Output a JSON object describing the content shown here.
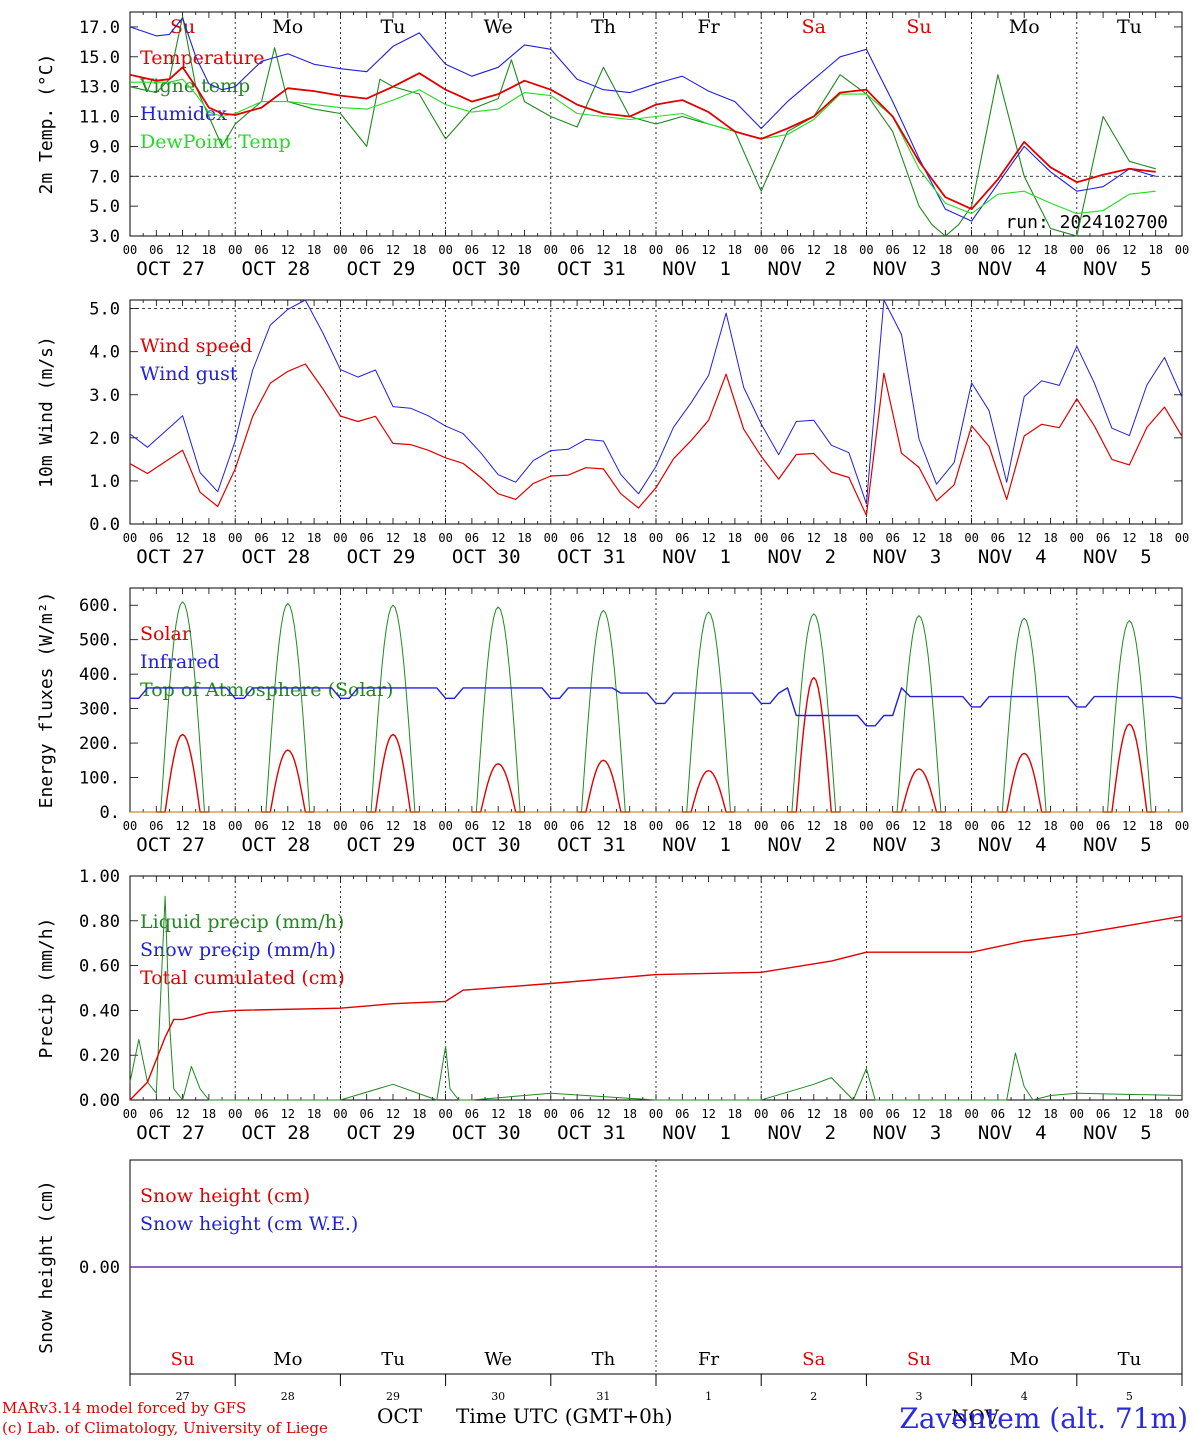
{
  "panels": [
    {
      "id": "temp",
      "ylabel": "2m Temp. (°C)",
      "ylim": [
        3.0,
        18.0
      ],
      "yticks": [
        "3.0",
        "5.0",
        "7.0",
        "9.0",
        "11.0",
        "13.0",
        "15.0",
        "17.0"
      ],
      "ytick_values": [
        3,
        5,
        7,
        9,
        11,
        13,
        15,
        17
      ],
      "dashed_y": 7.0,
      "legend": [
        {
          "label": "Temperature",
          "color": "#e00000"
        },
        {
          "label": "Vigne temp",
          "color": "#1f8a1f"
        },
        {
          "label": "Humidex",
          "color": "#2020e0"
        },
        {
          "label": "DewPoint Temp",
          "color": "#22dd22"
        }
      ],
      "run_label": "run: 2024102700"
    },
    {
      "id": "wind",
      "ylabel": "10m Wind (m/s)",
      "ylim": [
        0.0,
        5.2
      ],
      "yticks": [
        "0.0",
        "1.0",
        "2.0",
        "3.0",
        "4.0",
        "5.0"
      ],
      "ytick_values": [
        0,
        1,
        2,
        3,
        4,
        5
      ],
      "dashed_y": 5.0,
      "legend": [
        {
          "label": "Wind speed",
          "color": "#e00000"
        },
        {
          "label": "Wind gust",
          "color": "#2020e0"
        }
      ]
    },
    {
      "id": "flux",
      "ylabel": "Energy fluxes (W/m²)",
      "ylim": [
        0,
        650
      ],
      "yticks": [
        "0.",
        "100.",
        "200.",
        "300.",
        "400.",
        "500.",
        "600."
      ],
      "ytick_values": [
        0,
        100,
        200,
        300,
        400,
        500,
        600
      ],
      "legend": [
        {
          "label": "Solar",
          "color": "#e00000"
        },
        {
          "label": "Infrared",
          "color": "#2020e0"
        },
        {
          "label": "Top of Atmosphere (Solar)",
          "color": "#1f8a1f"
        }
      ]
    },
    {
      "id": "precip",
      "ylabel": "Precip (mm/h)",
      "ylim": [
        0.0,
        1.0
      ],
      "yticks": [
        "0.00",
        "0.20",
        "0.40",
        "0.60",
        "0.80",
        "1.00"
      ],
      "ytick_values": [
        0,
        0.2,
        0.4,
        0.6,
        0.8,
        1.0
      ],
      "legend": [
        {
          "label": "Liquid precip (mm/h)",
          "color": "#1f8a1f"
        },
        {
          "label": "Snow precip (mm/h)",
          "color": "#2020e0"
        },
        {
          "label": "Total cumulated (cm)",
          "color": "#e00000"
        }
      ]
    },
    {
      "id": "snow",
      "ylabel": "Snow height (cm)",
      "ylim": [
        -1,
        1
      ],
      "yticks": [
        "0.00"
      ],
      "ytick_values": [
        0
      ],
      "legend": [
        {
          "label": "Snow height (cm)",
          "color": "#e00000"
        },
        {
          "label": "Snow height (cm W.E.)",
          "color": "#2020e0"
        }
      ]
    }
  ],
  "hour_ticks": [
    "00",
    "06",
    "12",
    "18"
  ],
  "end_hour_tick": "00",
  "day_labels": [
    "OCT 27",
    "OCT 28",
    "OCT 29",
    "OCT 30",
    "OCT 31",
    "NOV  1",
    "NOV  2",
    "NOV  3",
    "NOV  4",
    "NOV  5"
  ],
  "weekdays": [
    {
      "label": "Su",
      "color": "#e00000"
    },
    {
      "label": "Mo",
      "color": "#000000"
    },
    {
      "label": "Tu",
      "color": "#000000"
    },
    {
      "label": "We",
      "color": "#000000"
    },
    {
      "label": "Th",
      "color": "#000000"
    },
    {
      "label": "Fr",
      "color": "#000000"
    },
    {
      "label": "Sa",
      "color": "#e00000"
    },
    {
      "label": "Su",
      "color": "#e00000"
    },
    {
      "label": "Mo",
      "color": "#000000"
    },
    {
      "label": "Tu",
      "color": "#000000"
    }
  ],
  "day_numbers": [
    "27",
    "28",
    "29",
    "30",
    "31",
    "1",
    "2",
    "3",
    "4",
    "5"
  ],
  "bottom_month": "OCT",
  "bottom_month2": "NOV",
  "x_title": "Time UTC (GMT+0h)",
  "footer_line1": "MARv3.14 model forced by GFS",
  "footer_line2": "(c) Lab. of Climatology, University of Liege",
  "station": "Zaventem (alt. 71m)",
  "chart_data": {
    "type": "line",
    "x_unit": "hours since 2024-10-27 00 UTC",
    "temperature": {
      "x": [
        0,
        6,
        9,
        12,
        15,
        18,
        21,
        24,
        30,
        36,
        42,
        48,
        54,
        60,
        66,
        72,
        78,
        84,
        90,
        96,
        102,
        108,
        114,
        120,
        126,
        132,
        138,
        144,
        150,
        156,
        162,
        168,
        174,
        180,
        186,
        192,
        198,
        204,
        210,
        216,
        222,
        228,
        234
      ],
      "y": [
        13.8,
        13.4,
        13.5,
        14.3,
        13.0,
        11.6,
        11.2,
        11.1,
        11.6,
        12.9,
        12.7,
        12.4,
        12.2,
        13.0,
        13.9,
        12.8,
        12.0,
        12.5,
        13.4,
        12.8,
        11.8,
        11.2,
        11.0,
        11.8,
        12.1,
        11.3,
        10.0,
        9.5,
        10.2,
        11.0,
        12.6,
        12.8,
        11.0,
        8.0,
        5.6,
        4.8,
        6.8,
        9.3,
        7.6,
        6.6,
        7.1,
        7.5,
        7.3
      ]
    },
    "vigne": {
      "x": [
        0,
        6,
        9,
        12,
        15,
        18,
        21,
        24,
        30,
        33,
        36,
        42,
        48,
        54,
        57,
        60,
        66,
        72,
        78,
        84,
        87,
        90,
        96,
        102,
        108,
        114,
        120,
        126,
        132,
        138,
        144,
        150,
        156,
        162,
        168,
        174,
        180,
        186,
        192,
        198,
        204,
        210,
        216,
        222,
        228,
        234
      ],
      "y": [
        13.0,
        12.6,
        13.5,
        17.7,
        13.0,
        11.0,
        9.0,
        10.5,
        12.0,
        15.6,
        12.0,
        11.5,
        11.2,
        9.0,
        13.5,
        13.0,
        12.5,
        9.5,
        11.5,
        12.2,
        14.8,
        12.0,
        11.0,
        10.3,
        14.3,
        11.0,
        10.5,
        11.0,
        10.5,
        10.0,
        6.0,
        10.0,
        11.0,
        13.8,
        12.5,
        10.0,
        5.0,
        2.5,
        5.0,
        13.8,
        7.0,
        3.5,
        3.0,
        11.0,
        8.0,
        7.5
      ]
    },
    "humidex": {
      "x": [
        0,
        6,
        9,
        12,
        15,
        18,
        21,
        24,
        30,
        36,
        42,
        48,
        54,
        60,
        66,
        72,
        78,
        84,
        90,
        96,
        102,
        108,
        114,
        120,
        126,
        132,
        138,
        144,
        150,
        156,
        162,
        168,
        174,
        180,
        186,
        192,
        198,
        204,
        210,
        216,
        222,
        228,
        234
      ],
      "y": [
        17.0,
        16.4,
        16.5,
        17.6,
        15.0,
        13.2,
        12.8,
        13.0,
        14.7,
        15.2,
        14.5,
        14.2,
        14.0,
        15.7,
        16.6,
        14.5,
        13.7,
        14.3,
        15.8,
        15.5,
        13.5,
        12.8,
        12.6,
        13.2,
        13.7,
        12.7,
        12.0,
        10.2,
        12.0,
        13.5,
        15.0,
        15.5,
        12.0,
        8.2,
        4.8,
        4.0,
        6.5,
        9.0,
        7.3,
        6.0,
        6.3,
        7.5,
        7.0
      ]
    },
    "dewpoint": {
      "x": [
        0,
        6,
        9,
        12,
        15,
        18,
        21,
        24,
        30,
        36,
        42,
        48,
        54,
        60,
        66,
        72,
        78,
        84,
        90,
        96,
        102,
        108,
        114,
        120,
        126,
        132,
        138,
        144,
        150,
        156,
        162,
        168,
        174,
        180,
        186,
        192,
        198,
        204,
        210,
        216,
        222,
        228,
        234
      ],
      "y": [
        13.3,
        13.3,
        13.3,
        13.5,
        12.5,
        11.3,
        11.0,
        11.2,
        12.0,
        12.0,
        11.8,
        11.6,
        11.5,
        12.1,
        12.8,
        11.8,
        11.3,
        11.5,
        12.6,
        12.4,
        11.2,
        11.0,
        10.8,
        11.0,
        11.2,
        10.5,
        10.0,
        9.5,
        9.8,
        10.8,
        12.5,
        12.5,
        11.0,
        7.5,
        5.2,
        4.5,
        5.8,
        6.0,
        5.2,
        4.5,
        4.7,
        5.8,
        6.0
      ]
    },
    "wind_speed_max": 3.6,
    "wind_gust_max": 5.2,
    "solar_peak_max": 390,
    "toa_peak": 610,
    "infrared_level": 350,
    "precip_cumulated_end": 0.82,
    "precip_liquid_max": 0.91
  }
}
